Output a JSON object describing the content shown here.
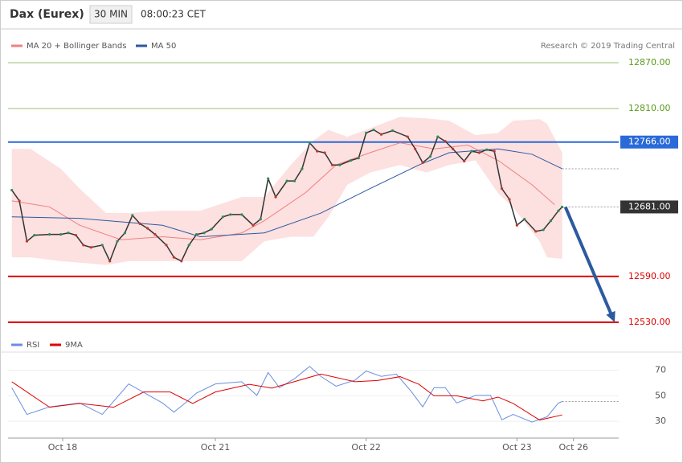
{
  "chart_data": [
    {
      "type": "line",
      "title": "Dax (Eurex)",
      "interval": "30 MIN",
      "time": "08:00:23 CET",
      "credit": "Research © 2019 Trading Central",
      "xlim": [
        0,
        162
      ],
      "ylim": [
        12494,
        12910
      ],
      "color": "#333333",
      "x": [
        1,
        3,
        5,
        7,
        11,
        14,
        16,
        18,
        20,
        22,
        25,
        27,
        29,
        31,
        33,
        35,
        37,
        39,
        42,
        44,
        46,
        48,
        50,
        52,
        54,
        57,
        59,
        62,
        65,
        67,
        69,
        71,
        74,
        76,
        78,
        80,
        82,
        84,
        86,
        88,
        91,
        93,
        95,
        97,
        99,
        102,
        106,
        108,
        110,
        112,
        114,
        116,
        118,
        121,
        123,
        125,
        127,
        129,
        131,
        133,
        135,
        137,
        140,
        142,
        144,
        146,
        147
      ],
      "values": [
        12703,
        12689,
        12636,
        12644,
        12645,
        12645,
        12647,
        12644,
        12631,
        12628,
        12631,
        12610,
        12636,
        12647,
        12670,
        12659,
        12653,
        12645,
        12631,
        12615,
        12610,
        12631,
        12645,
        12647,
        12652,
        12668,
        12671,
        12671,
        12657,
        12665,
        12718,
        12694,
        12715,
        12715,
        12731,
        12765,
        12754,
        12752,
        12736,
        12736,
        12742,
        12745,
        12778,
        12782,
        12776,
        12781,
        12773,
        12757,
        12739,
        12747,
        12773,
        12767,
        12757,
        12741,
        12754,
        12752,
        12756,
        12754,
        12705,
        12691,
        12657,
        12665,
        12649,
        12651,
        12663,
        12676,
        12681
      ],
      "series": [
        {
          "name": "MA 20 + Bollinger Bands",
          "color": "#f08080",
          "x": [
            1,
            11,
            19,
            30,
            41,
            51,
            62,
            68,
            79,
            87,
            96,
            104,
            113,
            122,
            130,
            139,
            145
          ],
          "values": [
            12689,
            12681,
            12657,
            12638,
            12642,
            12638,
            12647,
            12663,
            12700,
            12736,
            12752,
            12765,
            12757,
            12762,
            12742,
            12710,
            12684
          ]
        },
        {
          "name": "MA 50",
          "color": "#2c5aa0",
          "x": [
            1,
            19,
            41,
            51,
            68,
            83,
            96,
            109,
            117,
            130,
            139,
            147
          ],
          "values": [
            12668,
            12666,
            12657,
            12642,
            12647,
            12673,
            12705,
            12736,
            12752,
            12757,
            12750,
            12731
          ]
        }
      ],
      "bands": {
        "color": "#fde0e0",
        "x": [
          1,
          6,
          14,
          19,
          26,
          32,
          41,
          51,
          62,
          68,
          75,
          81,
          85,
          90,
          96,
          104,
          111,
          117,
          124,
          130,
          134,
          141,
          143,
          147
        ],
        "upper": [
          12757,
          12757,
          12731,
          12705,
          12673,
          12673,
          12676,
          12676,
          12694,
          12694,
          12736,
          12768,
          12782,
          12773,
          12784,
          12799,
          12797,
          12794,
          12775,
          12778,
          12794,
          12796,
          12790,
          12752
        ],
        "lower": [
          12615,
          12615,
          12610,
          12608,
          12605,
          12610,
          12610,
          12610,
          12610,
          12636,
          12642,
          12642,
          12668,
          12710,
          12726,
          12736,
          12726,
          12736,
          12742,
          12699,
          12680,
          12636,
          12615,
          12613
        ]
      },
      "levels": [
        {
          "value": 12870,
          "label": "12870.00",
          "color": "#5a9a1a",
          "box": false
        },
        {
          "value": 12810,
          "label": "12810.00",
          "color": "#5a9a1a",
          "box": false
        },
        {
          "value": 12766,
          "label": "12766.00",
          "color": "#2a6ad8",
          "box": true
        },
        {
          "value": 12681,
          "label": "12681.00",
          "color": "#333333",
          "box": true
        },
        {
          "value": 12590,
          "label": "12590.00",
          "color": "#e00000",
          "box": false
        },
        {
          "value": 12530,
          "label": "12530.00",
          "color": "#e00000",
          "box": false
        }
      ]
    },
    {
      "type": "line",
      "xlim": [
        0,
        162
      ],
      "ylim": [
        20,
        83
      ],
      "yticks": [
        30,
        50,
        70
      ],
      "grid": true,
      "xticks": [
        {
          "value": 14.5,
          "label": "Oct 18"
        },
        {
          "value": 55,
          "label": "Oct 21"
        },
        {
          "value": 95,
          "label": "Oct 22"
        },
        {
          "value": 135,
          "label": "Oct 23"
        },
        {
          "value": 150,
          "label": "Oct 26"
        }
      ],
      "series": [
        {
          "name": "RSI",
          "color": "#6a8ee0",
          "x": [
            1,
            5,
            11,
            19,
            25,
            32,
            41,
            44,
            47,
            50,
            55,
            62,
            66,
            69,
            72,
            76,
            80,
            83,
            87,
            92,
            95,
            99,
            103,
            107,
            110,
            113,
            116,
            119,
            124,
            128,
            131,
            134,
            139,
            143,
            146,
            147
          ],
          "values": [
            56.3,
            35.4,
            41.3,
            44.3,
            35.4,
            59.3,
            44.3,
            37.2,
            44.3,
            52.1,
            59.3,
            61,
            50.3,
            68.2,
            56.3,
            63.4,
            73,
            65.2,
            57.5,
            62.2,
            69.4,
            65.2,
            67,
            53.3,
            41.3,
            56.3,
            56.3,
            44.3,
            50.3,
            50.3,
            31.2,
            35.4,
            29.4,
            33.6,
            44.3,
            45.5
          ]
        },
        {
          "name": "9MA",
          "color": "#e00000",
          "x": [
            1,
            11,
            19,
            28,
            36,
            43,
            49,
            55,
            64,
            70,
            77,
            83,
            92,
            98,
            104,
            109,
            113,
            119,
            126,
            130,
            134,
            141,
            147
          ],
          "values": [
            61,
            41,
            44,
            41,
            53,
            53,
            44,
            53,
            59,
            56,
            62,
            67,
            61,
            62,
            65,
            59,
            50,
            50,
            46,
            49,
            44,
            31,
            35
          ]
        }
      ]
    }
  ]
}
